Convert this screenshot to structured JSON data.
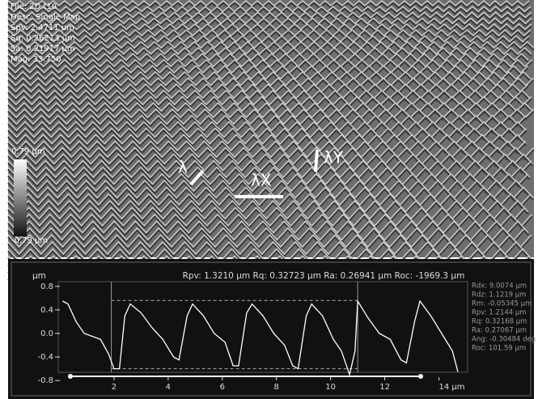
{
  "surface": {
    "info": [
      "File: 2D.t10",
      "Desc: Single Map",
      "Spv: 2.4711 µm",
      "Sq: 0.26213 µm",
      "Sa: 0.21917 µm",
      "Mag: 33.750"
    ],
    "scale_max": "0.79 µm",
    "scale_min": "-0.79 µm",
    "labels": [
      "λ",
      "λX",
      "λY"
    ]
  },
  "chart_data": {
    "type": "line",
    "title": "Rpv: 1.3210 µm   Rq: 0.32723 µm   Ra: 0.26941 µm   Roc: -1969.3 µm",
    "y_label": "µm",
    "annotations": [
      "Rdx: 9.0074 µm",
      "Rdz: 1.1219 µm",
      "Rm:  -0.05345 µm",
      "Rpv: 1.2144 µm",
      "Rq: 0.32168 µm",
      "Ra: 0.27067 µm",
      "Ang: -0.30484 deg",
      "Roc: 101.59 µm"
    ],
    "x": [
      0.1,
      0.3,
      0.6,
      0.9,
      1.2,
      1.5,
      1.8,
      2.0,
      2.2,
      2.4,
      2.6,
      3.0,
      3.4,
      3.8,
      4.2,
      4.4,
      4.7,
      4.9,
      5.3,
      5.7,
      6.1,
      6.4,
      6.6,
      6.9,
      7.1,
      7.5,
      7.9,
      8.3,
      8.6,
      8.8,
      9.1,
      9.3,
      9.7,
      10.1,
      10.4,
      10.7,
      10.9,
      11.0,
      11.4,
      11.8,
      12.2,
      12.6,
      12.8,
      13.1,
      13.3,
      13.7,
      14.1,
      14.5,
      14.7
    ],
    "series": [
      {
        "color": "#ffffff",
        "values": [
          0.55,
          0.5,
          0.2,
          0.0,
          -0.05,
          -0.1,
          -0.35,
          -0.6,
          -0.6,
          0.3,
          0.5,
          0.35,
          0.1,
          -0.1,
          -0.4,
          -0.45,
          0.3,
          0.5,
          0.3,
          0.0,
          -0.15,
          -0.55,
          -0.55,
          0.35,
          0.5,
          0.3,
          0.0,
          -0.2,
          -0.55,
          -0.6,
          0.3,
          0.5,
          0.3,
          -0.1,
          -0.3,
          -0.7,
          -0.3,
          0.55,
          0.25,
          0.0,
          -0.1,
          -0.45,
          -0.5,
          0.2,
          0.55,
          0.3,
          0.0,
          -0.3,
          -0.65
        ]
      }
    ],
    "cursors_x": [
      1.9,
      11.0
    ],
    "levels": [
      0.56,
      -0.6
    ],
    "xlim": [
      0,
      15
    ],
    "ylim": [
      -0.88,
      0.88
    ],
    "xticks": [
      2,
      4,
      6,
      8,
      10,
      12,
      {
        "value": 14,
        "label": "14 µm"
      }
    ],
    "yticks": [
      0.8,
      0.4,
      {
        "value": 0,
        "label": "0.0"
      },
      -0.4,
      -0.8
    ]
  }
}
